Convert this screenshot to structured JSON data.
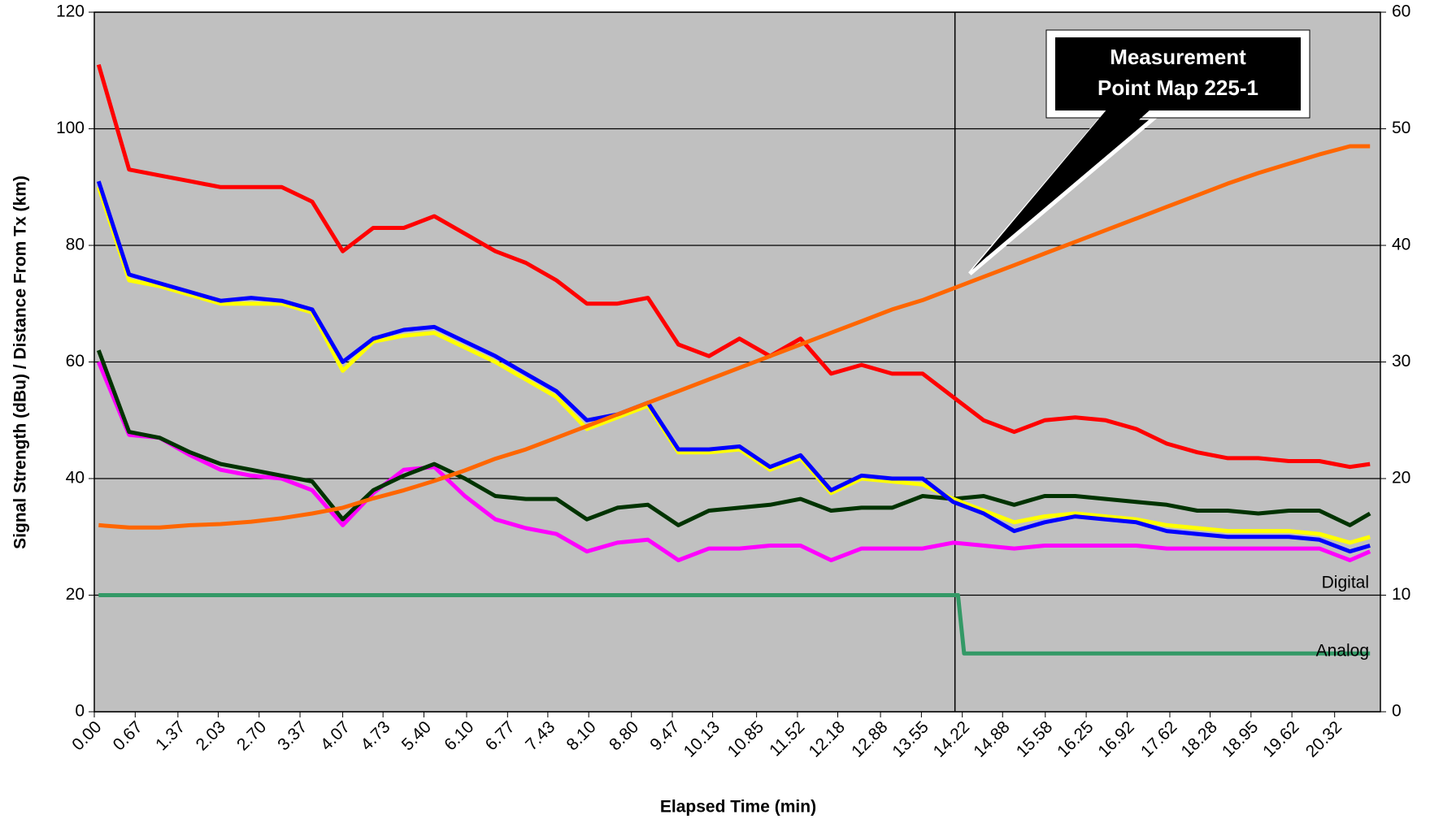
{
  "chart_data": {
    "type": "line",
    "x_label": "Elapsed Time (min)",
    "y_label": "Signal Strength (dBu) / Distance From Tx (km)",
    "x": [
      0.07,
      0.57,
      1.07,
      1.57,
      2.07,
      2.57,
      3.07,
      3.57,
      4.07,
      4.57,
      5.07,
      5.57,
      6.07,
      6.57,
      7.07,
      7.57,
      8.07,
      8.57,
      9.07,
      9.57,
      10.07,
      10.57,
      11.07,
      11.57,
      12.07,
      12.57,
      13.07,
      13.57,
      14.07,
      14.57,
      15.07,
      15.57,
      16.07,
      16.57,
      17.07,
      17.57,
      18.07,
      18.57,
      19.07,
      19.57,
      20.07,
      20.57,
      20.9
    ],
    "xlim": [
      0,
      21.07
    ],
    "xticks": [
      {
        "value": 0,
        "label": "0.00"
      },
      {
        "value": 0.67,
        "label": "0.67"
      },
      {
        "value": 1.37,
        "label": "1.37"
      },
      {
        "value": 2.03,
        "label": "2.03"
      },
      {
        "value": 2.7,
        "label": "2.70"
      },
      {
        "value": 3.37,
        "label": "3.37"
      },
      {
        "value": 4.07,
        "label": "4.07"
      },
      {
        "value": 4.73,
        "label": "4.73"
      },
      {
        "value": 5.4,
        "label": "5.40"
      },
      {
        "value": 6.1,
        "label": "6.10"
      },
      {
        "value": 6.77,
        "label": "6.77"
      },
      {
        "value": 7.43,
        "label": "7.43"
      },
      {
        "value": 8.1,
        "label": "8.10"
      },
      {
        "value": 8.8,
        "label": "8.80"
      },
      {
        "value": 9.47,
        "label": "9.47"
      },
      {
        "value": 10.13,
        "label": "10.13"
      },
      {
        "value": 10.85,
        "label": "10.85"
      },
      {
        "value": 11.52,
        "label": "11.52"
      },
      {
        "value": 12.18,
        "label": "12.18"
      },
      {
        "value": 12.88,
        "label": "12.88"
      },
      {
        "value": 13.55,
        "label": "13.55"
      },
      {
        "value": 14.22,
        "label": "14.22"
      },
      {
        "value": 14.88,
        "label": "14.88"
      },
      {
        "value": 15.58,
        "label": "15.58"
      },
      {
        "value": 16.25,
        "label": "16.25"
      },
      {
        "value": 16.92,
        "label": "16.92"
      },
      {
        "value": 17.62,
        "label": "17.62"
      },
      {
        "value": 18.28,
        "label": "18.28"
      },
      {
        "value": 18.95,
        "label": "18.95"
      },
      {
        "value": 19.62,
        "label": "19.62"
      },
      {
        "value": 20.32,
        "label": "20.32"
      }
    ],
    "ylim": [
      0,
      120
    ],
    "yticks": [
      0,
      20,
      40,
      60,
      80,
      100,
      120
    ],
    "y2lim": [
      0,
      60
    ],
    "y2ticks": [
      0,
      10,
      20,
      30,
      40,
      50,
      60
    ],
    "grid": true,
    "plot_background": "#c0c0c0",
    "vline_x": 14.1,
    "series": [
      {
        "color": "#339966",
        "x": [
          0.07,
          14.15,
          14.25,
          20.9
        ],
        "values": [
          20,
          20,
          10,
          10
        ]
      },
      {
        "color": "#ff00ff",
        "values": [
          60,
          47.5,
          47,
          44,
          41.5,
          40.5,
          40,
          38,
          32,
          37.5,
          41.5,
          42,
          37,
          33,
          31.5,
          30.5,
          27.5,
          29,
          29.5,
          26,
          28,
          28,
          28.5,
          28.5,
          26,
          28,
          28,
          28,
          29,
          28.5,
          28,
          28.5,
          28.5,
          28.5,
          28.5,
          28,
          28,
          28,
          28,
          28,
          28,
          26,
          27.5
        ]
      },
      {
        "color": "#003300",
        "values": [
          62,
          48,
          47,
          44.5,
          42.5,
          41.5,
          40.5,
          39.5,
          33,
          38,
          40.5,
          42.5,
          40,
          37,
          36.5,
          36.5,
          33,
          35,
          35.5,
          32,
          34.5,
          35,
          35.5,
          36.5,
          34.5,
          35,
          35,
          37,
          36.5,
          37,
          35.5,
          37,
          37,
          36.5,
          36,
          35.5,
          34.5,
          34.5,
          34,
          34.5,
          34.5,
          32,
          34
        ]
      },
      {
        "color": "#ffff00",
        "values": [
          90,
          74,
          73,
          71.5,
          70,
          70,
          70,
          68.5,
          58.5,
          63.5,
          64.5,
          65,
          62.5,
          60,
          57,
          54,
          48.5,
          50.5,
          52.5,
          44.5,
          44.5,
          45,
          41.5,
          43.5,
          37.5,
          40,
          39.5,
          39,
          36.5,
          34.5,
          32.5,
          33.5,
          34,
          33.5,
          33,
          32,
          31.5,
          31,
          31,
          31,
          30.5,
          29,
          30
        ]
      },
      {
        "color": "#0000ff",
        "values": [
          91,
          75,
          73.5,
          72,
          70.5,
          71,
          70.5,
          69,
          60,
          64,
          65.5,
          66,
          63.5,
          61,
          58,
          55,
          50,
          51,
          53,
          45,
          45,
          45.5,
          42,
          44,
          38,
          40.5,
          40,
          40,
          36,
          34,
          31,
          32.5,
          33.5,
          33,
          32.5,
          31,
          30.5,
          30,
          30,
          30,
          29.5,
          27.5,
          28.5
        ]
      },
      {
        "color": "#ff0000",
        "values": [
          111,
          93,
          92,
          91,
          90,
          90,
          90,
          87.5,
          79,
          83,
          83,
          85,
          82,
          79,
          77,
          74,
          70,
          70,
          71,
          63,
          61,
          64,
          61,
          64,
          58,
          59.5,
          58,
          58,
          54,
          50,
          48,
          50,
          50.5,
          50,
          48.5,
          46,
          44.5,
          43.5,
          43.5,
          43,
          43,
          42,
          42.5
        ]
      },
      {
        "color": "#ff6600",
        "axis": "y2",
        "values": [
          16,
          15.8,
          15.8,
          16,
          16.1,
          16.3,
          16.6,
          17,
          17.5,
          18.3,
          19,
          19.8,
          20.7,
          21.7,
          22.5,
          23.5,
          24.5,
          25.5,
          26.5,
          27.5,
          28.5,
          29.5,
          30.5,
          31.5,
          32.5,
          33.5,
          34.5,
          35.3,
          36.3,
          37.3,
          38.3,
          39.3,
          40.3,
          41.3,
          42.3,
          43.3,
          44.3,
          45.3,
          46.2,
          47,
          47.8,
          48.5,
          48.5
        ]
      }
    ],
    "annotations": {
      "digital": "Digital",
      "analog": "Analog",
      "callout": [
        "Measurement",
        "Point Map 225-1"
      ]
    }
  }
}
